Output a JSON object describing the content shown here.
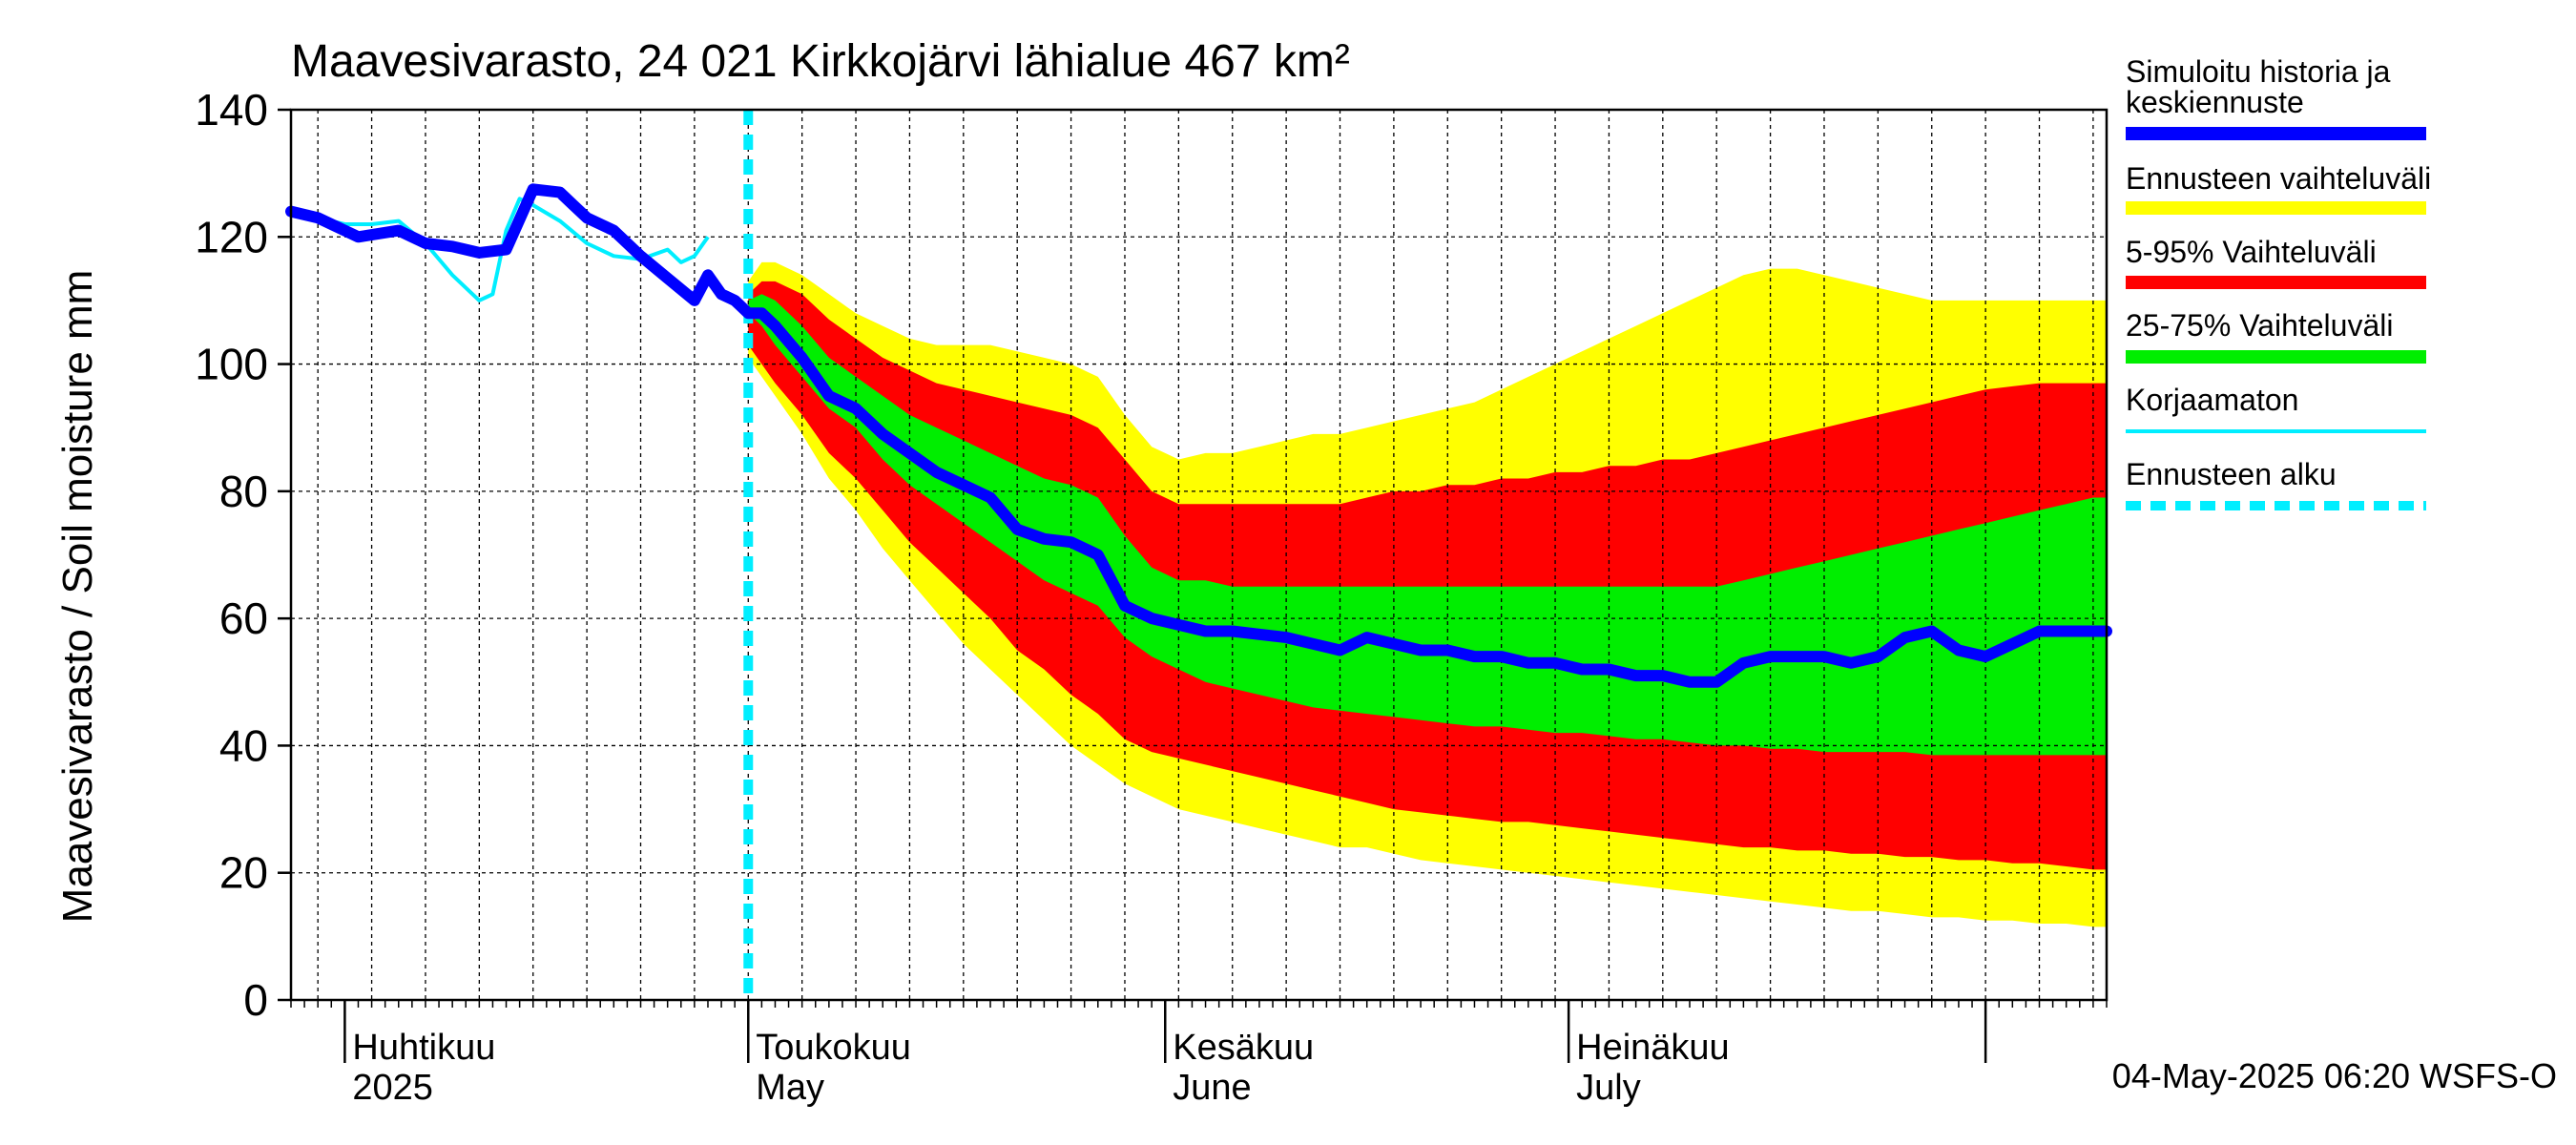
{
  "chart_data": {
    "type": "area",
    "title": "Maavesivarasto, 24 021 Kirkkojärvi lähialue 467 km²",
    "ylabel": "Maavesivarasto / Soil moisture   mm",
    "xlabel": "",
    "ylim": [
      0,
      140
    ],
    "yticks": [
      0,
      20,
      40,
      60,
      80,
      100,
      120,
      140
    ],
    "grid": true,
    "x_unit": "days since 2025-03-28",
    "xlim": [
      0,
      135
    ],
    "month_labels": [
      {
        "day": 4,
        "fi": "Huhtikuu",
        "en": "2025"
      },
      {
        "day": 34,
        "fi": "Toukokuu",
        "en": "May"
      },
      {
        "day": 65,
        "fi": "Kesäkuu",
        "en": "June"
      },
      {
        "day": 95,
        "fi": "Heinäkuu",
        "en": "July"
      }
    ],
    "month_start_days": [
      4,
      34,
      65,
      95,
      126
    ],
    "forecast_start_day": 34,
    "colors": {
      "band_5_95_outer": "#ffff00",
      "band_5_95": "#ff0000",
      "band_25_75": "#00ee00",
      "median": "#0000ff",
      "uncorrected": "#00eeff",
      "forecast_start": "#00eeff"
    },
    "legend": [
      {
        "key": "median",
        "label": "Simuloitu historia ja keskiennuste",
        "style": "thick"
      },
      {
        "key": "band_5_95_outer",
        "label": "Ennusteen vaihteluväli",
        "style": "thick"
      },
      {
        "key": "band_5_95",
        "label": "5-95% Vaihteluväli",
        "style": "thick"
      },
      {
        "key": "band_25_75",
        "label": "25-75% Vaihteluväli",
        "style": "thick"
      },
      {
        "key": "uncorrected",
        "label": "Korjaamaton",
        "style": "thin"
      },
      {
        "key": "forecast_start",
        "label": "Ennusteen alku",
        "style": "dashed"
      }
    ],
    "history": {
      "x": [
        0,
        2,
        5,
        8,
        10,
        12,
        14,
        16,
        18,
        20,
        21,
        22,
        24,
        26,
        28,
        30,
        31,
        32,
        33,
        34
      ],
      "y": [
        124,
        123,
        120,
        121,
        119,
        118.5,
        117.5,
        118,
        127.5,
        127,
        125,
        123,
        121,
        117,
        113.5,
        110,
        114,
        111,
        110,
        108
      ]
    },
    "uncorrected": {
      "x": [
        0,
        2,
        4,
        6,
        8,
        10,
        12,
        14,
        15,
        16,
        17,
        18,
        20,
        22,
        24,
        26,
        28,
        29,
        30,
        31
      ],
      "y": [
        124,
        123,
        122,
        122,
        122.5,
        119,
        114,
        110,
        111,
        121,
        126,
        125,
        122.5,
        119,
        117,
        116.5,
        118,
        116,
        117,
        120
      ]
    },
    "forecast": {
      "x": [
        34,
        35,
        36,
        38,
        40,
        42,
        44,
        46,
        48,
        50,
        52,
        54,
        56,
        58,
        60,
        62,
        64,
        66,
        68,
        70,
        72,
        74,
        76,
        78,
        80,
        82,
        84,
        86,
        88,
        90,
        92,
        94,
        96,
        98,
        100,
        102,
        104,
        106,
        108,
        110,
        112,
        114,
        116,
        118,
        120,
        122,
        124,
        126,
        128,
        130,
        132,
        134,
        135
      ],
      "median": [
        108,
        108,
        106,
        101,
        95,
        93,
        89,
        86,
        83,
        81,
        79,
        74,
        72.5,
        72,
        70,
        62,
        60,
        59,
        58,
        58,
        57.5,
        57,
        56,
        55,
        57,
        56,
        55,
        55,
        54,
        54,
        53,
        53,
        52,
        52,
        51,
        51,
        50,
        50,
        53,
        54,
        54,
        54,
        53,
        54,
        57,
        58,
        55,
        54,
        56,
        58,
        58,
        58,
        58
      ],
      "p25": [
        108,
        106,
        103,
        98,
        93,
        90,
        85,
        81,
        78,
        75,
        72,
        69,
        66,
        64,
        62,
        57,
        54,
        52,
        50,
        49,
        48,
        47,
        46,
        45.5,
        45,
        44.5,
        44,
        43.5,
        43,
        43,
        42.5,
        42,
        42,
        41.5,
        41,
        41,
        40.5,
        40,
        40,
        39.5,
        39.5,
        39,
        39,
        39,
        39,
        38.5,
        38.5,
        38.5,
        38.5,
        38.5,
        38.5,
        38.5,
        38.5
      ],
      "p75": [
        110,
        111,
        110,
        106,
        101,
        98,
        95,
        92,
        90,
        88,
        86,
        84,
        82,
        81,
        79,
        73,
        68,
        66,
        66,
        65,
        65,
        65,
        65,
        65,
        65,
        65,
        65,
        65,
        65,
        65,
        65,
        65,
        65,
        65,
        65,
        65,
        65,
        65,
        66,
        67,
        68,
        69,
        70,
        71,
        72,
        73,
        74,
        75,
        76,
        77,
        78,
        79,
        79
      ],
      "p5": [
        103,
        100,
        97,
        92,
        86,
        82,
        77,
        72,
        68,
        64,
        60,
        55,
        52,
        48,
        45,
        41,
        39,
        38,
        37,
        36,
        35,
        34,
        33,
        32,
        31,
        30,
        29.5,
        29,
        28.5,
        28,
        28,
        27.5,
        27,
        26.5,
        26,
        25.5,
        25,
        24.5,
        24,
        24,
        23.5,
        23.5,
        23,
        23,
        22.5,
        22.5,
        22,
        22,
        21.5,
        21.5,
        21,
        20.5,
        20.5
      ],
      "p95": [
        111,
        113,
        113,
        111,
        107,
        104,
        101,
        99,
        97,
        96,
        95,
        94,
        93,
        92,
        90,
        85,
        80,
        78,
        78,
        78,
        78,
        78,
        78,
        78,
        79,
        80,
        80,
        81,
        81,
        82,
        82,
        83,
        83,
        84,
        84,
        85,
        85,
        86,
        87,
        88,
        89,
        90,
        91,
        92,
        93,
        94,
        95,
        96,
        96.5,
        97,
        97,
        97,
        97
      ],
      "min": [
        101,
        98,
        95,
        89,
        82,
        77,
        71,
        66,
        61,
        56,
        52,
        48,
        44,
        40,
        37,
        34,
        32,
        30,
        29,
        28,
        27,
        26,
        25,
        24,
        24,
        23,
        22,
        21.5,
        21,
        20.5,
        20,
        19.5,
        19,
        18.5,
        18,
        17.5,
        17,
        16.5,
        16,
        15.5,
        15,
        14.5,
        14,
        14,
        13.5,
        13,
        13,
        12.5,
        12.5,
        12,
        12,
        11.5,
        11.5
      ],
      "max": [
        113,
        116,
        116,
        114,
        111,
        108,
        106,
        104,
        103,
        103,
        103,
        102,
        101,
        100,
        98,
        92,
        87,
        85,
        86,
        86,
        87,
        88,
        89,
        89,
        90,
        91,
        92,
        93,
        94,
        96,
        98,
        100,
        102,
        104,
        106,
        108,
        110,
        112,
        114,
        115,
        115,
        114,
        113,
        112,
        111,
        110,
        110,
        110,
        110,
        110,
        110,
        110,
        110
      ]
    }
  },
  "footer": {
    "timestamp": "04-May-2025 06:20 WSFS-O"
  }
}
